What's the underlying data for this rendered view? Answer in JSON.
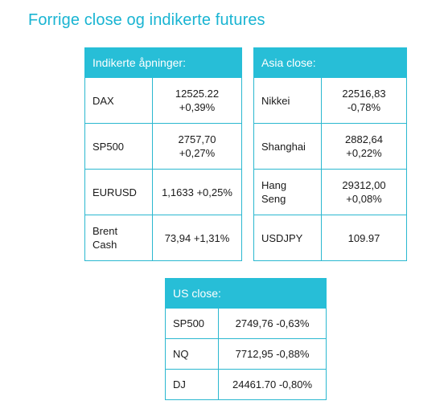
{
  "title": "Forrige close og indikerte futures",
  "indicated_openings": {
    "header": "Indikerte åpninger:",
    "rows": [
      {
        "name": "DAX",
        "value_line1": "12525.22",
        "value_line2": "+0,39%"
      },
      {
        "name": "SP500",
        "value_line1": "2757,70",
        "value_line2": "+0,27%"
      },
      {
        "name": "EURUSD",
        "value_line1": "1,1633 +0,25%",
        "value_line2": ""
      },
      {
        "name": "Brent Cash",
        "value_line1": "73,94 +1,31%",
        "value_line2": ""
      }
    ]
  },
  "asia_close": {
    "header": "Asia close:",
    "rows": [
      {
        "name": "Nikkei",
        "value_line1": "22516,83",
        "value_line2": "-0,78%"
      },
      {
        "name": "Shanghai",
        "value_line1": "2882,64",
        "value_line2": "+0,22%"
      },
      {
        "name": "Hang Seng",
        "value_line1": "29312,00",
        "value_line2": "+0,08%"
      },
      {
        "name": "USDJPY",
        "value_line1": "109.97",
        "value_line2": ""
      }
    ]
  },
  "us_close": {
    "header": "US close:",
    "rows": [
      {
        "name": "SP500",
        "value": "2749,76 -0,63%"
      },
      {
        "name": "NQ",
        "value": "7712,95 -0,88%"
      },
      {
        "name": "DJ",
        "value": "24461.70 -0,80%"
      }
    ]
  }
}
